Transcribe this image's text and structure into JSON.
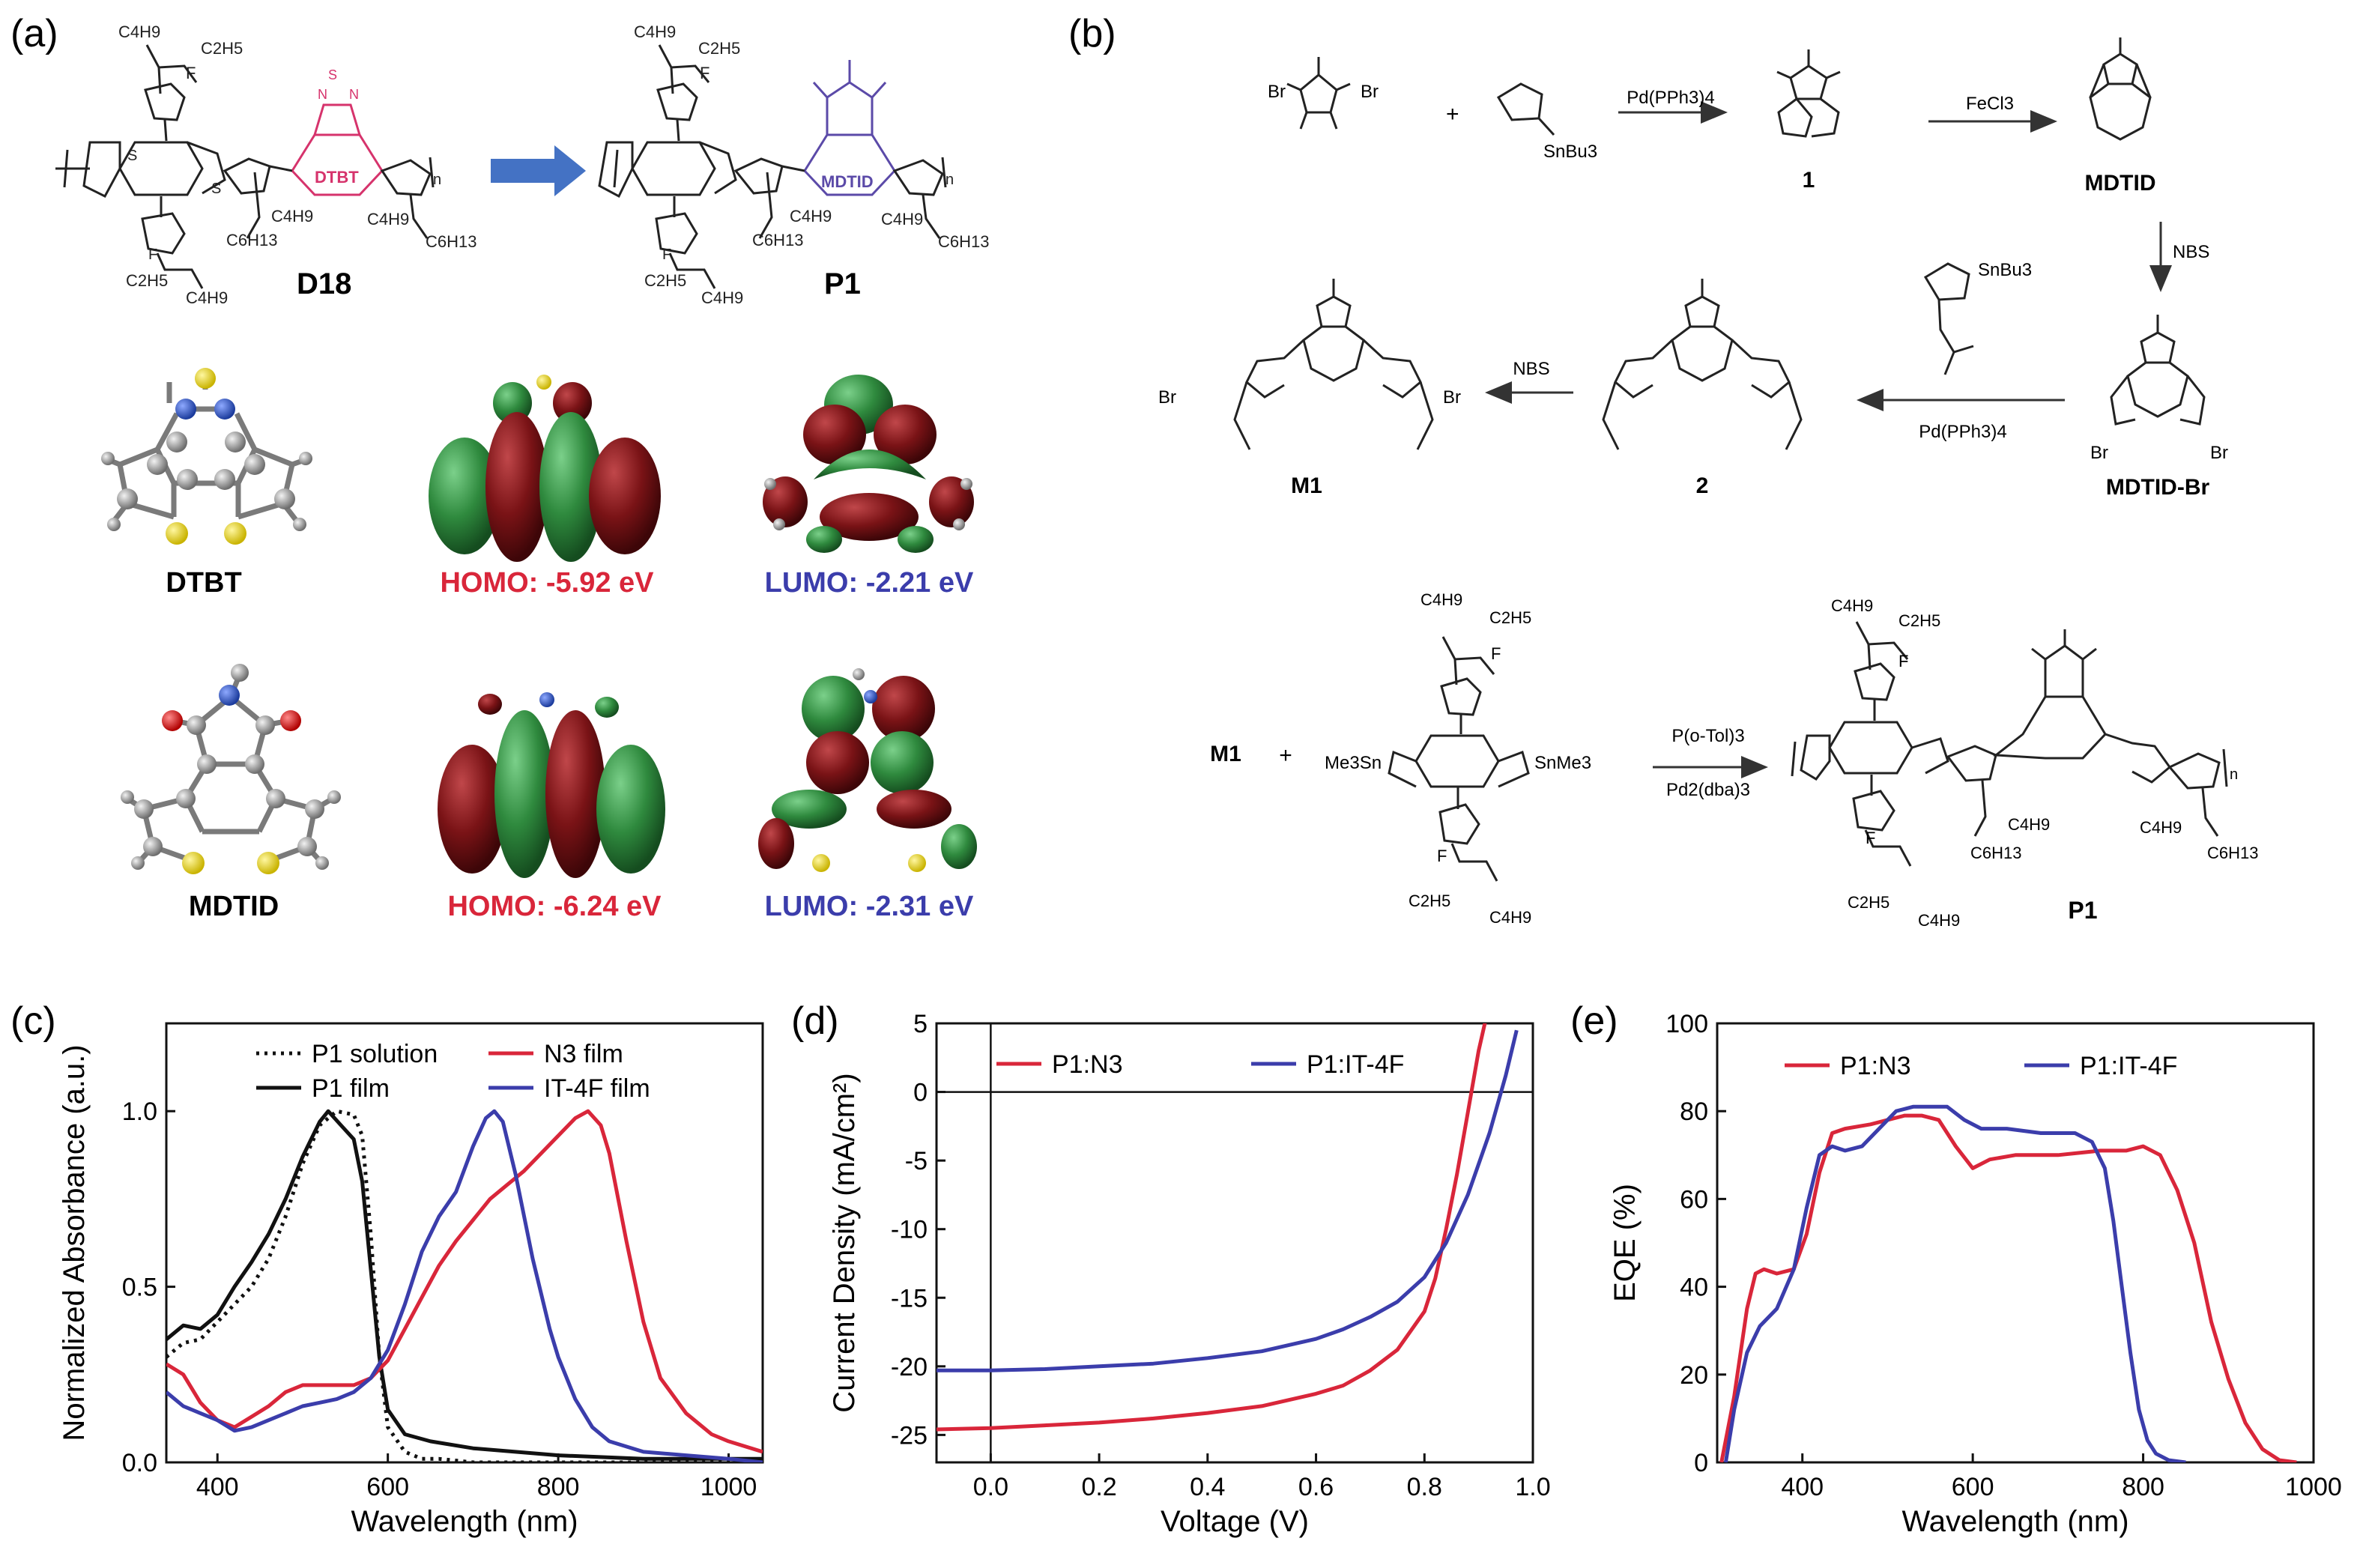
{
  "panels": {
    "a": {
      "label": "(a)",
      "polymers": [
        "D18",
        "P1"
      ],
      "fragment_labels": {
        "dtbt_inline": "DTBT",
        "mdtid_inline": "MDTID"
      },
      "orbitals": [
        {
          "name": "DTBT",
          "homo": "HOMO: -5.92 eV",
          "lumo": "LUMO: -2.21 eV"
        },
        {
          "name": "MDTID",
          "homo": "HOMO: -6.24 eV",
          "lumo": "LUMO: -2.31 eV"
        }
      ],
      "substituents": {
        "c4h9": "C4H9",
        "c2h5": "C2H5",
        "c6h13": "C6H13",
        "f": "F",
        "n": "n",
        "s": "S",
        "n_atom": "N"
      }
    },
    "b": {
      "label": "(b)",
      "reagents": {
        "pd_pph3": "Pd(PPh3)4",
        "fecl3": "FeCl3",
        "nbs_1": "NBS",
        "nbs_2": "NBS",
        "pd_pph3_2": "Pd(PPh3)4",
        "p_otol": "P(o-Tol)3",
        "pd2dba3": "Pd2(dba)3"
      },
      "compounds": {
        "c1": "1",
        "mdtid": "MDTID",
        "mdtid_br": "MDTID-Br",
        "c2": "2",
        "m1": "M1",
        "m1_reactant": "M1",
        "p1": "P1"
      },
      "substituents": {
        "snbu3": "SnBu3",
        "snbu3_b": "SnBu3",
        "br": "Br",
        "me3sn": "Me3Sn",
        "snme3": "SnMe3",
        "plus": "+"
      }
    },
    "c": {
      "label": "(c)",
      "xlabel": "Wavelength (nm)",
      "ylabel": "Normalized Absorbance (a.u.)"
    },
    "d": {
      "label": "(d)",
      "xlabel": "Voltage (V)",
      "ylabel": "Current Density (mA/cm²)"
    },
    "e": {
      "label": "(e)",
      "xlabel": "Wavelength (nm)",
      "ylabel": "EQE (%)"
    }
  },
  "chart_data": [
    {
      "type": "line",
      "panel": "c",
      "xlabel": "Wavelength (nm)",
      "ylabel": "Normalized Absorbance (a.u.)",
      "xlim": [
        340,
        1040
      ],
      "ylim": [
        0,
        1.25
      ],
      "xticks": [
        400,
        600,
        800,
        1000
      ],
      "yticks": [
        0.0,
        0.5,
        1.0
      ],
      "ytick_labels": [
        "0.0",
        "0.5",
        "1.0"
      ],
      "legend_position": "top",
      "series": [
        {
          "name": "P1 solution",
          "color": "#111111",
          "style": "dotted",
          "x": [
            340,
            360,
            380,
            400,
            420,
            440,
            460,
            480,
            500,
            520,
            540,
            560,
            570,
            580,
            590,
            600,
            620,
            640,
            660,
            700,
            800,
            900,
            1000,
            1040
          ],
          "y": [
            0.3,
            0.34,
            0.35,
            0.4,
            0.45,
            0.5,
            0.58,
            0.7,
            0.85,
            0.96,
            1.0,
            0.99,
            0.93,
            0.65,
            0.3,
            0.1,
            0.03,
            0.01,
            0.01,
            0.0,
            0.0,
            0.0,
            0.0,
            0.0
          ]
        },
        {
          "name": "P1 film",
          "color": "#111111",
          "style": "solid",
          "x": [
            340,
            360,
            380,
            400,
            420,
            440,
            460,
            480,
            500,
            520,
            530,
            545,
            560,
            570,
            580,
            590,
            600,
            620,
            650,
            700,
            800,
            900,
            1000,
            1040
          ],
          "y": [
            0.35,
            0.39,
            0.38,
            0.42,
            0.5,
            0.57,
            0.65,
            0.75,
            0.87,
            0.97,
            1.0,
            0.96,
            0.92,
            0.8,
            0.55,
            0.3,
            0.15,
            0.08,
            0.06,
            0.04,
            0.02,
            0.01,
            0.01,
            0.01
          ]
        },
        {
          "name": "N3 film",
          "color": "#d9263a",
          "style": "solid",
          "x": [
            340,
            360,
            380,
            400,
            420,
            440,
            460,
            480,
            500,
            520,
            540,
            560,
            580,
            600,
            620,
            640,
            660,
            680,
            700,
            720,
            740,
            760,
            780,
            800,
            820,
            835,
            850,
            860,
            880,
            900,
            920,
            950,
            980,
            1000,
            1040
          ],
          "y": [
            0.28,
            0.25,
            0.17,
            0.12,
            0.1,
            0.13,
            0.16,
            0.2,
            0.22,
            0.22,
            0.22,
            0.22,
            0.24,
            0.29,
            0.38,
            0.47,
            0.56,
            0.63,
            0.69,
            0.75,
            0.79,
            0.83,
            0.88,
            0.93,
            0.98,
            1.0,
            0.96,
            0.88,
            0.63,
            0.4,
            0.24,
            0.14,
            0.08,
            0.06,
            0.03
          ]
        },
        {
          "name": "IT-4F film",
          "color": "#3b3dab",
          "style": "solid",
          "x": [
            340,
            360,
            380,
            400,
            420,
            440,
            460,
            480,
            500,
            520,
            540,
            560,
            580,
            600,
            620,
            640,
            660,
            680,
            700,
            715,
            725,
            735,
            750,
            770,
            790,
            800,
            820,
            840,
            860,
            900,
            950,
            1000,
            1040
          ],
          "y": [
            0.2,
            0.16,
            0.14,
            0.12,
            0.09,
            0.1,
            0.12,
            0.14,
            0.16,
            0.17,
            0.18,
            0.2,
            0.24,
            0.32,
            0.45,
            0.6,
            0.7,
            0.77,
            0.9,
            0.98,
            1.0,
            0.97,
            0.82,
            0.58,
            0.38,
            0.3,
            0.18,
            0.1,
            0.06,
            0.03,
            0.02,
            0.01,
            0.0
          ]
        }
      ]
    },
    {
      "type": "line",
      "panel": "d",
      "xlabel": "Voltage (V)",
      "ylabel": "Current Density (mA/cm²)",
      "xlim": [
        -0.1,
        1.0
      ],
      "ylim": [
        -27,
        5
      ],
      "xticks": [
        0.0,
        0.2,
        0.4,
        0.6,
        0.8,
        1.0
      ],
      "xtick_labels": [
        "0.0",
        "0.2",
        "0.4",
        "0.6",
        "0.8",
        "1.0"
      ],
      "yticks": [
        5,
        0,
        -5,
        -10,
        -15,
        -20,
        -25
      ],
      "legend_position": "top",
      "series": [
        {
          "name": "P1:N3",
          "color": "#d9263a",
          "x": [
            -0.1,
            0.0,
            0.1,
            0.2,
            0.3,
            0.4,
            0.5,
            0.6,
            0.65,
            0.7,
            0.75,
            0.8,
            0.82,
            0.84,
            0.86,
            0.88,
            0.9,
            0.92
          ],
          "y": [
            -24.6,
            -24.5,
            -24.3,
            -24.1,
            -23.8,
            -23.4,
            -22.9,
            -22.0,
            -21.4,
            -20.3,
            -18.8,
            -16.0,
            -13.6,
            -10.0,
            -6.0,
            -1.5,
            3.0,
            6.5
          ]
        },
        {
          "name": "P1:IT-4F",
          "color": "#3b3dab",
          "x": [
            -0.1,
            0.0,
            0.1,
            0.2,
            0.3,
            0.4,
            0.5,
            0.6,
            0.65,
            0.7,
            0.75,
            0.8,
            0.84,
            0.88,
            0.92,
            0.95,
            0.97
          ],
          "y": [
            -20.3,
            -20.3,
            -20.2,
            -20.0,
            -19.8,
            -19.4,
            -18.9,
            -18.0,
            -17.3,
            -16.4,
            -15.3,
            -13.5,
            -11.0,
            -7.5,
            -3.0,
            1.2,
            4.5
          ]
        }
      ]
    },
    {
      "type": "line",
      "panel": "e",
      "xlabel": "Wavelength (nm)",
      "ylabel": "EQE (%)",
      "xlim": [
        300,
        1000
      ],
      "ylim": [
        0,
        100
      ],
      "xticks": [
        400,
        600,
        800,
        1000
      ],
      "yticks": [
        0,
        20,
        40,
        60,
        80,
        100
      ],
      "legend_position": "top",
      "series": [
        {
          "name": "P1:N3",
          "color": "#d9263a",
          "x": [
            305,
            320,
            335,
            345,
            355,
            370,
            390,
            405,
            420,
            435,
            450,
            480,
            500,
            520,
            540,
            560,
            580,
            600,
            620,
            650,
            700,
            750,
            780,
            800,
            820,
            840,
            860,
            880,
            900,
            920,
            940,
            960,
            980
          ],
          "y": [
            0,
            15,
            35,
            43,
            44,
            43,
            44,
            52,
            66,
            75,
            76,
            77,
            78,
            79,
            79,
            78,
            72,
            67,
            69,
            70,
            70,
            71,
            71,
            72,
            70,
            62,
            50,
            32,
            19,
            9,
            3,
            0.5,
            0
          ]
        },
        {
          "name": "P1:IT-4F",
          "color": "#3b3dab",
          "x": [
            310,
            320,
            335,
            350,
            370,
            390,
            405,
            420,
            435,
            450,
            470,
            490,
            510,
            530,
            550,
            570,
            590,
            610,
            640,
            680,
            720,
            740,
            755,
            765,
            775,
            785,
            795,
            805,
            815,
            830,
            850
          ],
          "y": [
            0,
            12,
            25,
            31,
            35,
            44,
            58,
            70,
            72,
            71,
            72,
            76,
            80,
            81,
            81,
            81,
            78,
            76,
            76,
            75,
            75,
            73,
            67,
            55,
            40,
            25,
            12,
            5,
            2,
            0.5,
            0
          ]
        }
      ]
    }
  ]
}
